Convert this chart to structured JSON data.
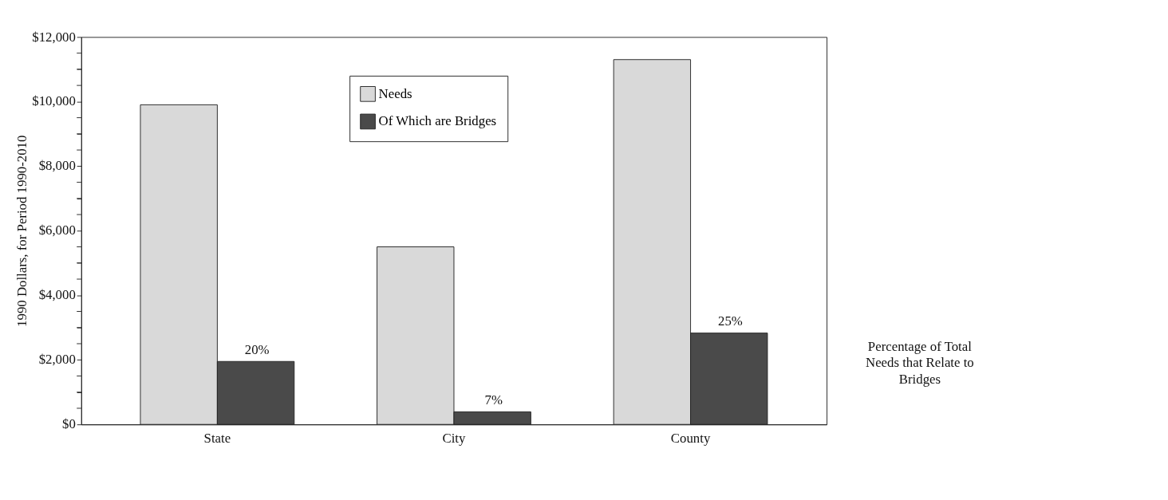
{
  "chart_data": {
    "type": "bar",
    "categories": [
      "State",
      "City",
      "County"
    ],
    "ylabel": "1990 Dollars, for Period 1990-2010",
    "series": [
      {
        "name": "Needs",
        "color": "#d9d9d9",
        "values": [
          9900,
          5500,
          11300
        ]
      },
      {
        "name": "Of Which are Bridges",
        "color": "#4a4a4a",
        "values": [
          1950,
          390,
          2830
        ]
      }
    ],
    "ylim": [
      0,
      12000
    ],
    "yticks": [
      {
        "value": 0,
        "label": "$0"
      },
      {
        "value": 500,
        "label": null
      },
      {
        "value": 1000,
        "label": null
      },
      {
        "value": 1500,
        "label": null
      },
      {
        "value": 2000,
        "label": "$2,000"
      },
      {
        "value": 2500,
        "label": null
      },
      {
        "value": 3000,
        "label": null
      },
      {
        "value": 3500,
        "label": null
      },
      {
        "value": 4000,
        "label": "$4,000"
      },
      {
        "value": 4500,
        "label": null
      },
      {
        "value": 5000,
        "label": null
      },
      {
        "value": 5500,
        "label": null
      },
      {
        "value": 6000,
        "label": "$6,000"
      },
      {
        "value": 6500,
        "label": null
      },
      {
        "value": 7000,
        "label": null
      },
      {
        "value": 7500,
        "label": null
      },
      {
        "value": 8000,
        "label": "$8,000"
      },
      {
        "value": 8500,
        "label": null
      },
      {
        "value": 9000,
        "label": null
      },
      {
        "value": 9500,
        "label": null
      },
      {
        "value": 10000,
        "label": "$10,000"
      },
      {
        "value": 10500,
        "label": null
      },
      {
        "value": 11000,
        "label": null
      },
      {
        "value": 11500,
        "label": null
      },
      {
        "value": 12000,
        "label": "$12,000"
      }
    ],
    "grid": false,
    "legend": "top",
    "annotations": [
      {
        "text": "20%",
        "x": "State",
        "y": 1950
      },
      {
        "text": "7%",
        "x": "City",
        "y": 390
      },
      {
        "text": "25%",
        "x": "County",
        "y": 2830
      },
      "Percentage of Total Needs that Relate to Bridges"
    ]
  }
}
